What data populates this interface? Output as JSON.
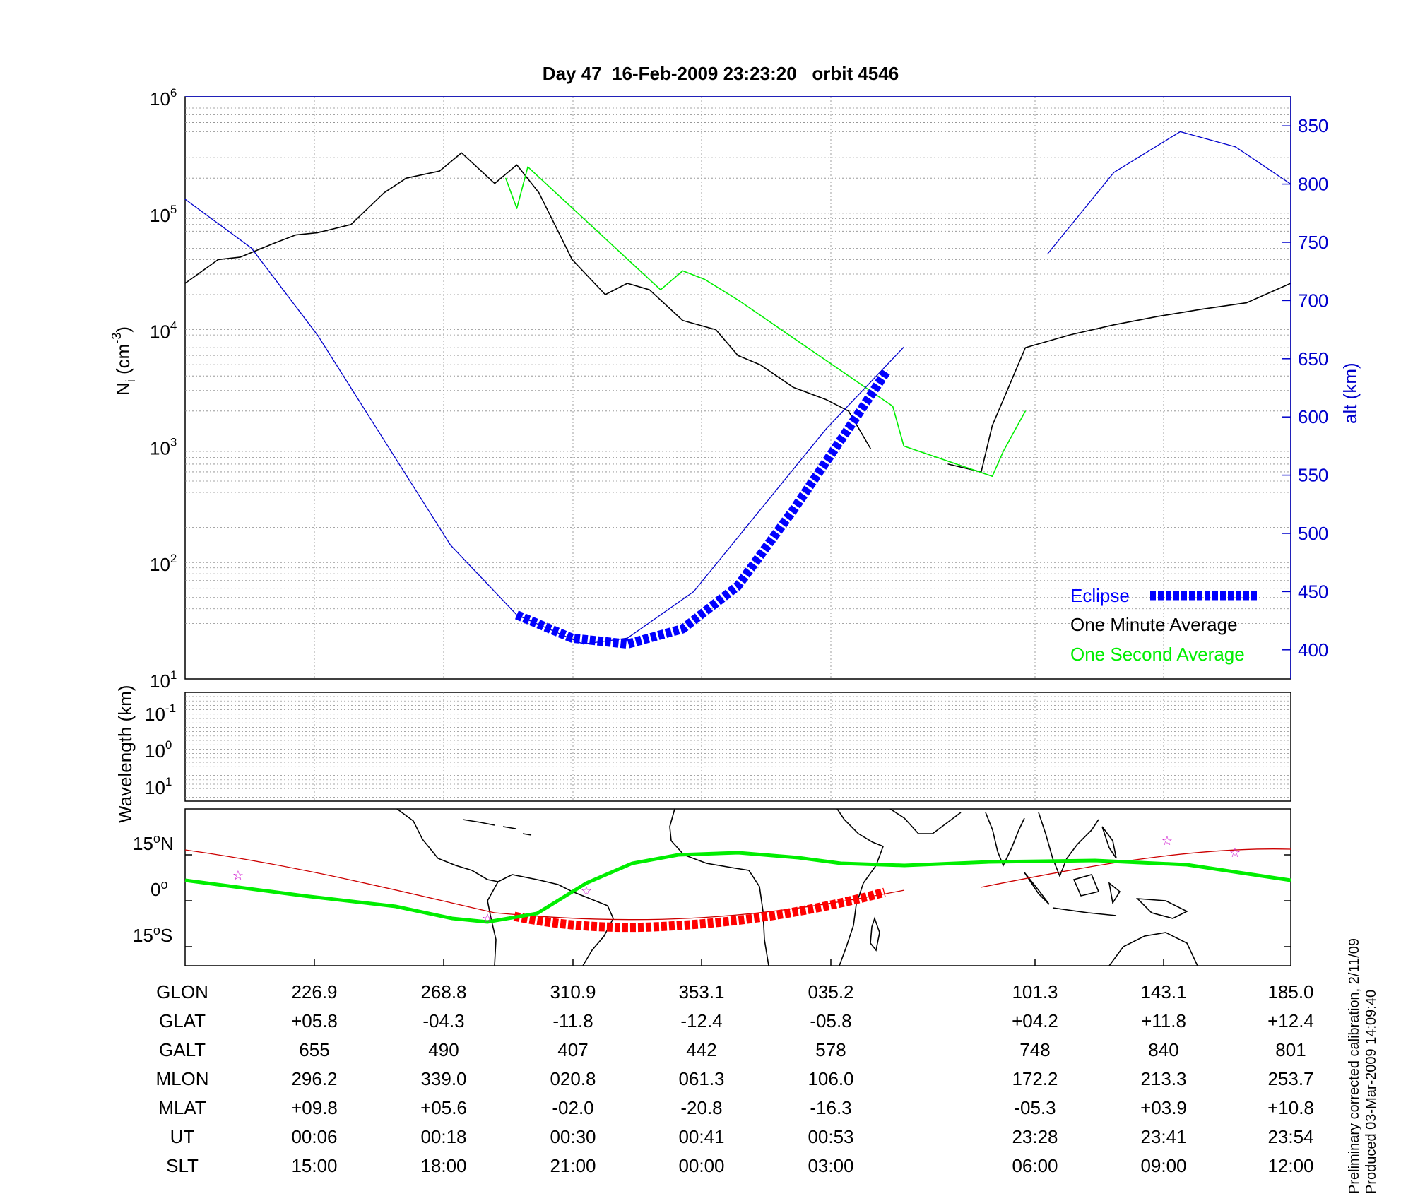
{
  "title": "Day 47  16-Feb-2009 23:23:20   orbit 4546",
  "left_axis": {
    "label_main": "N",
    "label_sub": "i",
    "label_rest": " (cm",
    "label_exp": "-3",
    "label_close": ")",
    "tick_base": "10",
    "tick_exps": [
      "6",
      "5",
      "4",
      "3",
      "2",
      "1"
    ]
  },
  "right_axis": {
    "label": "alt (km)",
    "ticks": [
      "850",
      "800",
      "750",
      "700",
      "650",
      "600",
      "550",
      "500",
      "450",
      "400"
    ]
  },
  "legend": {
    "eclipse": "Eclipse",
    "minute": "One Minute Average",
    "second": "One Second Average"
  },
  "wave_panel": {
    "label": "Wavelength (km)",
    "tick_base": "10",
    "tick_exps": [
      "-1",
      "0",
      "1"
    ]
  },
  "map_panel": {
    "lat_labels": [
      {
        "deg": "15",
        "o": "o",
        "hemi": "N"
      },
      {
        "deg": "0",
        "o": "o",
        "hemi": ""
      },
      {
        "deg": "15",
        "o": "o",
        "hemi": "S"
      }
    ]
  },
  "ephemeris": {
    "row_labels": [
      "GLON",
      "GLAT",
      "GALT",
      "MLON",
      "MLAT",
      "UT",
      "SLT"
    ],
    "columns": [
      [
        "226.9",
        "+05.8",
        "655",
        "296.2",
        "+09.8",
        "00:06",
        "15:00"
      ],
      [
        "268.8",
        "-04.3",
        "490",
        "339.0",
        "+05.6",
        "00:18",
        "18:00"
      ],
      [
        "310.9",
        "-11.8",
        "407",
        "020.8",
        "-02.0",
        "00:30",
        "21:00"
      ],
      [
        "353.1",
        "-12.4",
        "442",
        "061.3",
        "-20.8",
        "00:41",
        "00:00"
      ],
      [
        "035.2",
        "-05.8",
        "578",
        "106.0",
        "-16.3",
        "00:53",
        "03:00"
      ],
      [
        "101.3",
        "+04.2",
        "748",
        "172.2",
        "-05.3",
        "23:28",
        "06:00"
      ],
      [
        "143.1",
        "+11.8",
        "840",
        "213.3",
        "+03.9",
        "23:41",
        "09:00"
      ],
      [
        "185.0",
        "+12.4",
        "801",
        "253.7",
        "+10.8",
        "23:54",
        "12:00"
      ]
    ]
  },
  "footnote": {
    "line1": "Preliminary corrected calibration, 2/11/09",
    "line2": "Produced 03-Mar-2009 14:09:40"
  },
  "colors": {
    "altitude": "#0000cc",
    "eclipse": "#0000ff",
    "minute_avg": "#000000",
    "second_avg": "#00ee00",
    "track_eclipse": "#ff0000",
    "map_track": "#00ee00",
    "stars": "#cc00cc"
  },
  "chart_data": {
    "type": "line",
    "title": "Day 47  16-Feb-2009 23:23:20   orbit 4546",
    "x_tick_labels": [
      "226.9",
      "268.8",
      "310.9",
      "353.1",
      "035.2",
      "101.3",
      "143.1",
      "185.0"
    ],
    "ylim_left": [
      10,
      1000000
    ],
    "yscale_left": "log",
    "ylim_right": [
      375,
      875
    ],
    "grid": true,
    "legend_position": "lower-right",
    "series": [
      {
        "name": "One Minute Average",
        "x": [
          0,
          0.03,
          0.05,
          0.08,
          0.1,
          0.12,
          0.15,
          0.18,
          0.2,
          0.23,
          0.25,
          0.28,
          0.3,
          0.32,
          0.35,
          0.38,
          0.4,
          0.42,
          0.45,
          0.48,
          0.5,
          0.52,
          0.55,
          0.58,
          0.6,
          0.62,
          0.65,
          0.69,
          0.72,
          0.73,
          0.76,
          0.8,
          0.84,
          0.88,
          0.92,
          0.96,
          1.0
        ],
        "y": [
          25000,
          40000,
          42000,
          55000,
          65000,
          68000,
          80000,
          150000,
          200000,
          230000,
          330000,
          180000,
          260000,
          150000,
          40000,
          20000,
          25000,
          22000,
          12000,
          10000,
          6000,
          5000,
          3200,
          2500,
          2000,
          950,
          null,
          700,
          600,
          1500,
          7000,
          9000,
          11000,
          13000,
          15000,
          17000,
          25000
        ]
      },
      {
        "name": "One Second Average",
        "x": [
          0.29,
          0.3,
          0.31,
          0.43,
          0.45,
          0.47,
          0.5,
          0.64,
          0.65,
          0.73,
          0.74,
          0.76
        ],
        "y": [
          200000,
          110000,
          250000,
          22000,
          32000,
          27000,
          18000,
          2200,
          1000,
          550,
          900,
          2000
        ]
      },
      {
        "name": "",
        "axis": "right",
        "units": "km",
        "x": [
          0,
          0.06,
          0.12,
          0.18,
          0.24,
          0.3,
          0.36,
          0.4,
          0.46,
          0.52,
          0.58,
          0.62,
          0.65,
          0.72,
          0.78,
          0.84,
          0.9,
          0.95,
          1.0
        ],
        "y": [
          787,
          745,
          670,
          580,
          490,
          430,
          405,
          410,
          450,
          520,
          590,
          630,
          660,
          null,
          740,
          810,
          845,
          832,
          800
        ]
      },
      {
        "name": "Eclipse",
        "axis": "right",
        "units": "km",
        "x": [
          0.3,
          0.35,
          0.4,
          0.45,
          0.5,
          0.55,
          0.6,
          0.635
        ],
        "y": [
          430,
          410,
          405,
          418,
          455,
          520,
          590,
          640
        ]
      }
    ]
  }
}
